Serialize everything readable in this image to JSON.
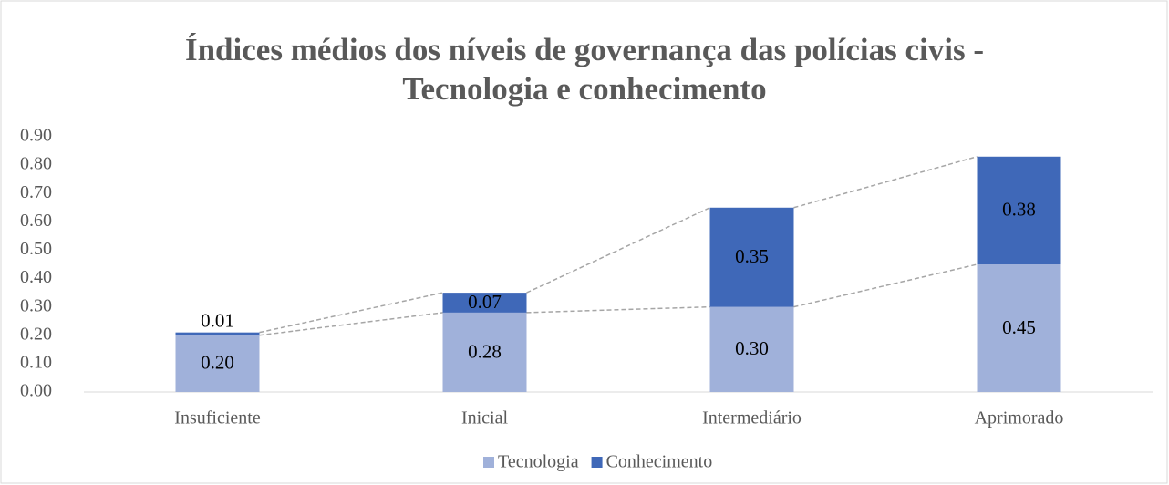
{
  "chart_data": {
    "type": "stacked-bar",
    "title": [
      "Índices médios dos níveis de governança das polícias civis -",
      "Tecnologia e conhecimento"
    ],
    "categories": [
      "Insuficiente",
      "Inicial",
      "Intermediário",
      "Aprimorado"
    ],
    "series": [
      {
        "name": "Tecnologia",
        "color": "#a0b1da",
        "values": [
          0.2,
          0.28,
          0.3,
          0.45
        ],
        "value_labels": [
          "0.20",
          "0.28",
          "0.30",
          "0.45"
        ]
      },
      {
        "name": "Conhecimento",
        "color": "#3f68b8",
        "values": [
          0.01,
          0.07,
          0.35,
          0.38
        ],
        "value_labels": [
          "0.01",
          "0.07",
          "0.35",
          "0.38"
        ]
      }
    ],
    "ylim": [
      0,
      0.9
    ],
    "yticks": [
      {
        "value": 0,
        "label": "0.00"
      },
      {
        "value": 0.1,
        "label": "0.10"
      },
      {
        "value": 0.2,
        "label": "0.20"
      },
      {
        "value": 0.3,
        "label": "0.30"
      },
      {
        "value": 0.4,
        "label": "0.40"
      },
      {
        "value": 0.5,
        "label": "0.50"
      },
      {
        "value": 0.6,
        "label": "0.60"
      },
      {
        "value": 0.7,
        "label": "0.70"
      },
      {
        "value": 0.8,
        "label": "0.80"
      },
      {
        "value": 0.9,
        "label": "0.90"
      }
    ],
    "legend": "bottom",
    "series_lines": true
  }
}
